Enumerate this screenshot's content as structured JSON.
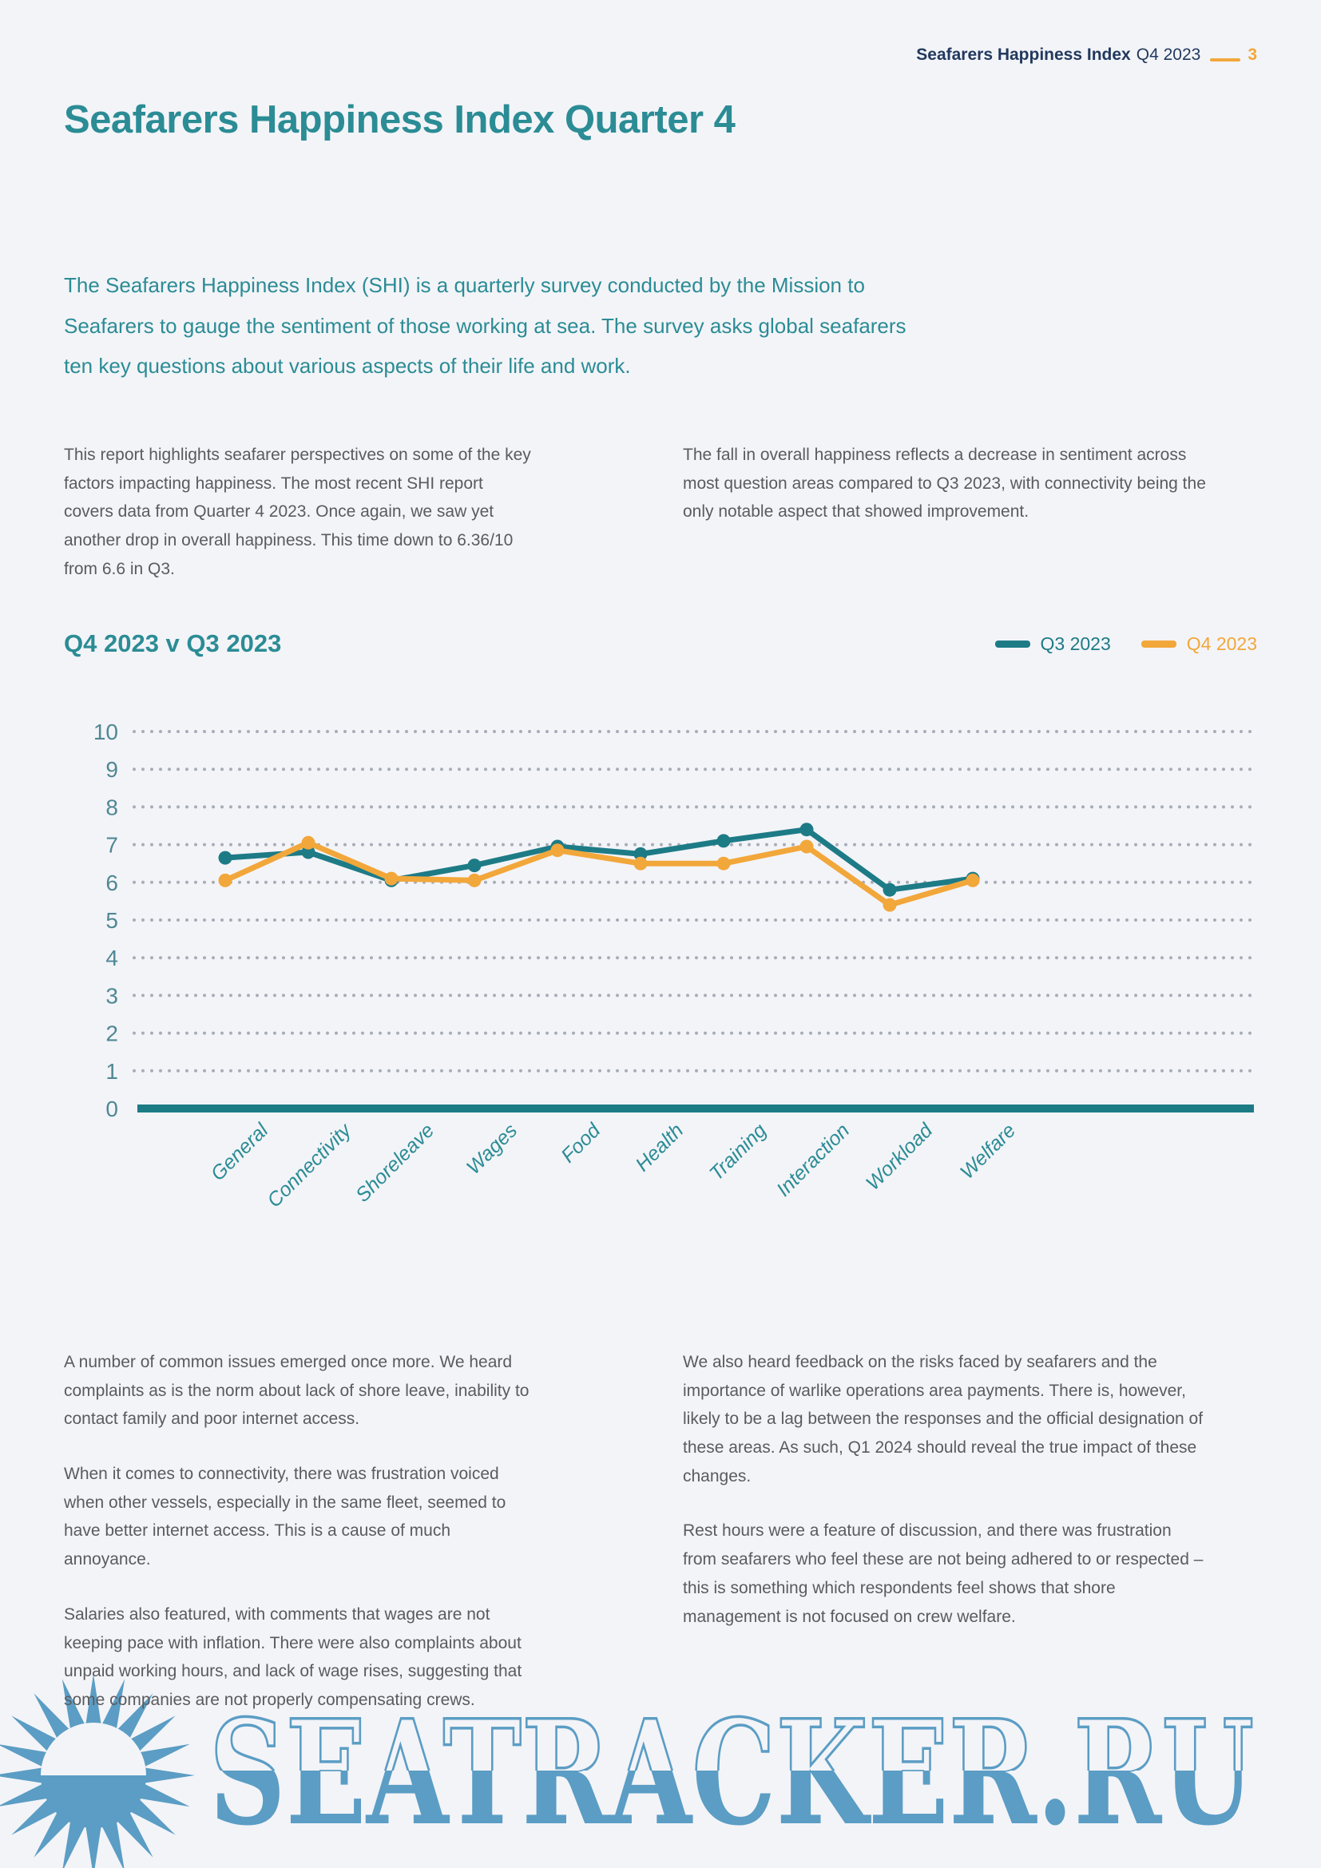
{
  "colors": {
    "background": "#f3f4f8",
    "teal_heading": "#2b8c95",
    "teal_line": "#1d7b86",
    "orange": "#f2a73b",
    "navy": "#22395e",
    "body_text": "#595b5f",
    "axis_label": "#4f8894",
    "grid_dot": "#a7adb6",
    "watermark_blue": "#5b9dc4"
  },
  "header": {
    "brand": "Seafarers Happiness Index",
    "quarter": "Q4 2023",
    "page_number": "3"
  },
  "title": "Seafarers Happiness Index Quarter 4",
  "intro": "The Seafarers Happiness Index (SHI) is a quarterly survey conducted by the Mission to Seafarers to gauge the sentiment of those working at sea. The survey asks global seafarers ten key questions about various aspects of their life and work.",
  "summary_columns": {
    "left": "This report highlights seafarer perspectives on some of the key factors impacting happiness. The most recent SHI report covers data from Quarter 4 2023. Once again, we saw yet another drop in overall happiness. This time down to 6.36/10 from 6.6 in Q3.",
    "right": "The fall in overall happiness reflects a decrease in sentiment across most question areas compared to Q3 2023, with connectivity being the only notable aspect that showed improvement."
  },
  "chart_data": {
    "type": "line",
    "title": "Q4 2023 v Q3 2023",
    "categories": [
      "General",
      "Connectivity",
      "Shoreleave",
      "Wages",
      "Food",
      "Health",
      "Training",
      "Interaction",
      "Workload",
      "Welfare"
    ],
    "series": [
      {
        "name": "Q3 2023",
        "color": "#1d7b86",
        "values": [
          6.65,
          6.8,
          6.05,
          6.45,
          6.95,
          6.75,
          7.1,
          7.4,
          5.8,
          6.1
        ]
      },
      {
        "name": "Q4 2023",
        "color": "#f2a73b",
        "values": [
          6.05,
          7.05,
          6.1,
          6.05,
          6.85,
          6.5,
          6.5,
          6.95,
          5.4,
          6.05
        ]
      }
    ],
    "ylim": [
      0,
      10
    ],
    "yticks": [
      0,
      1,
      2,
      3,
      4,
      5,
      6,
      7,
      8,
      9,
      10
    ],
    "grid": "dotted-horizontal",
    "legend_position": "top-right",
    "xlabel": "",
    "ylabel": ""
  },
  "body_columns": {
    "left": [
      "A number of common issues emerged once more. We heard complaints as is the norm about lack of shore leave, inability to contact family and poor internet access.",
      "When it comes to connectivity, there was frustration voiced when other vessels, especially in the same fleet, seemed to have better internet access. This is a cause of much annoyance.",
      "Salaries also featured, with comments that wages are not keeping pace with inflation. There were also complaints about unpaid working hours, and lack of wage rises, suggesting that some companies are not properly compensating crews."
    ],
    "right": [
      "We also heard feedback on the risks faced by seafarers and the importance of warlike operations area payments. There is, however, likely to be a lag between the responses and the official designation of these areas. As such, Q1 2024 should reveal the true impact of these changes.",
      "Rest hours were a feature of discussion, and there was frustration from seafarers who feel these are not being adhered to or respected – this is something which respondents feel shows that shore management is not focused on crew welfare."
    ]
  },
  "watermark": {
    "text": "SEATRACKER.RU",
    "icon": "sun-icon"
  }
}
